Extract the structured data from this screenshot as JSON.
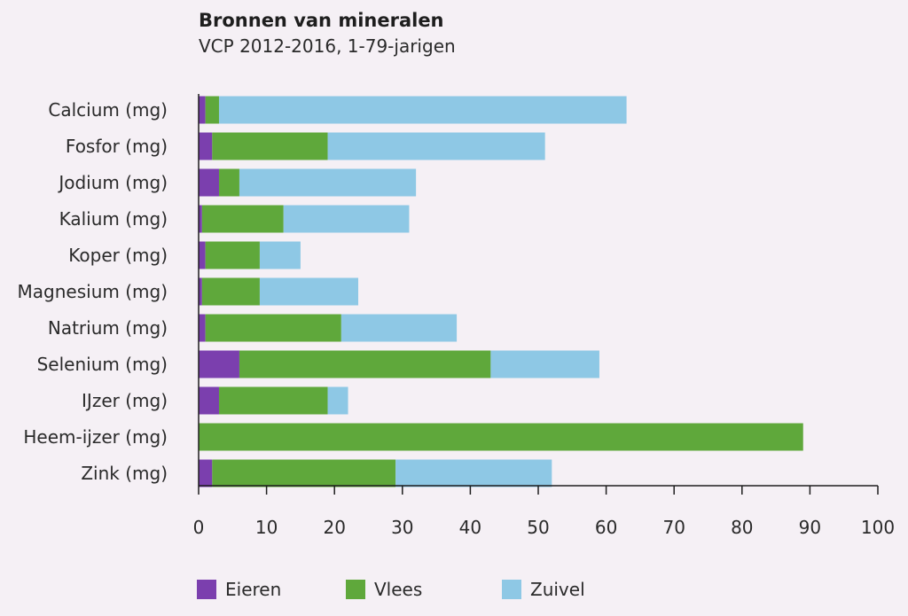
{
  "chart_data": {
    "type": "bar",
    "orientation": "horizontal",
    "stacked": true,
    "title": "Bronnen van mineralen",
    "subtitle": "VCP 2012-2016, 1-79-jarigen",
    "categories": [
      "Calcium (mg)",
      "Fosfor (mg)",
      "Jodium (mg)",
      "Kalium (mg)",
      "Koper (mg)",
      "Magnesium (mg)",
      "Natrium (mg)",
      "Selenium (mg)",
      "IJzer (mg)",
      "Heem-ijzer (mg)",
      "Zink (mg)"
    ],
    "series": [
      {
        "name": "Eieren",
        "color": "#7b3fae",
        "values": [
          1,
          2,
          3,
          0.5,
          1,
          0.5,
          1,
          6,
          3,
          0,
          2
        ]
      },
      {
        "name": "Vlees",
        "color": "#5fa83b",
        "values": [
          2,
          17,
          3,
          12,
          8,
          8.5,
          20,
          37,
          16,
          89,
          27
        ]
      },
      {
        "name": "Zuivel",
        "color": "#8ec8e5",
        "values": [
          60,
          32,
          26,
          18.5,
          6,
          14.5,
          17,
          16,
          3,
          0,
          23
        ]
      }
    ],
    "xlim": [
      0,
      100
    ],
    "xticks": [
      0,
      10,
      20,
      30,
      40,
      50,
      60,
      70,
      80,
      90,
      100
    ],
    "legend_position": "bottom",
    "grid": false
  }
}
